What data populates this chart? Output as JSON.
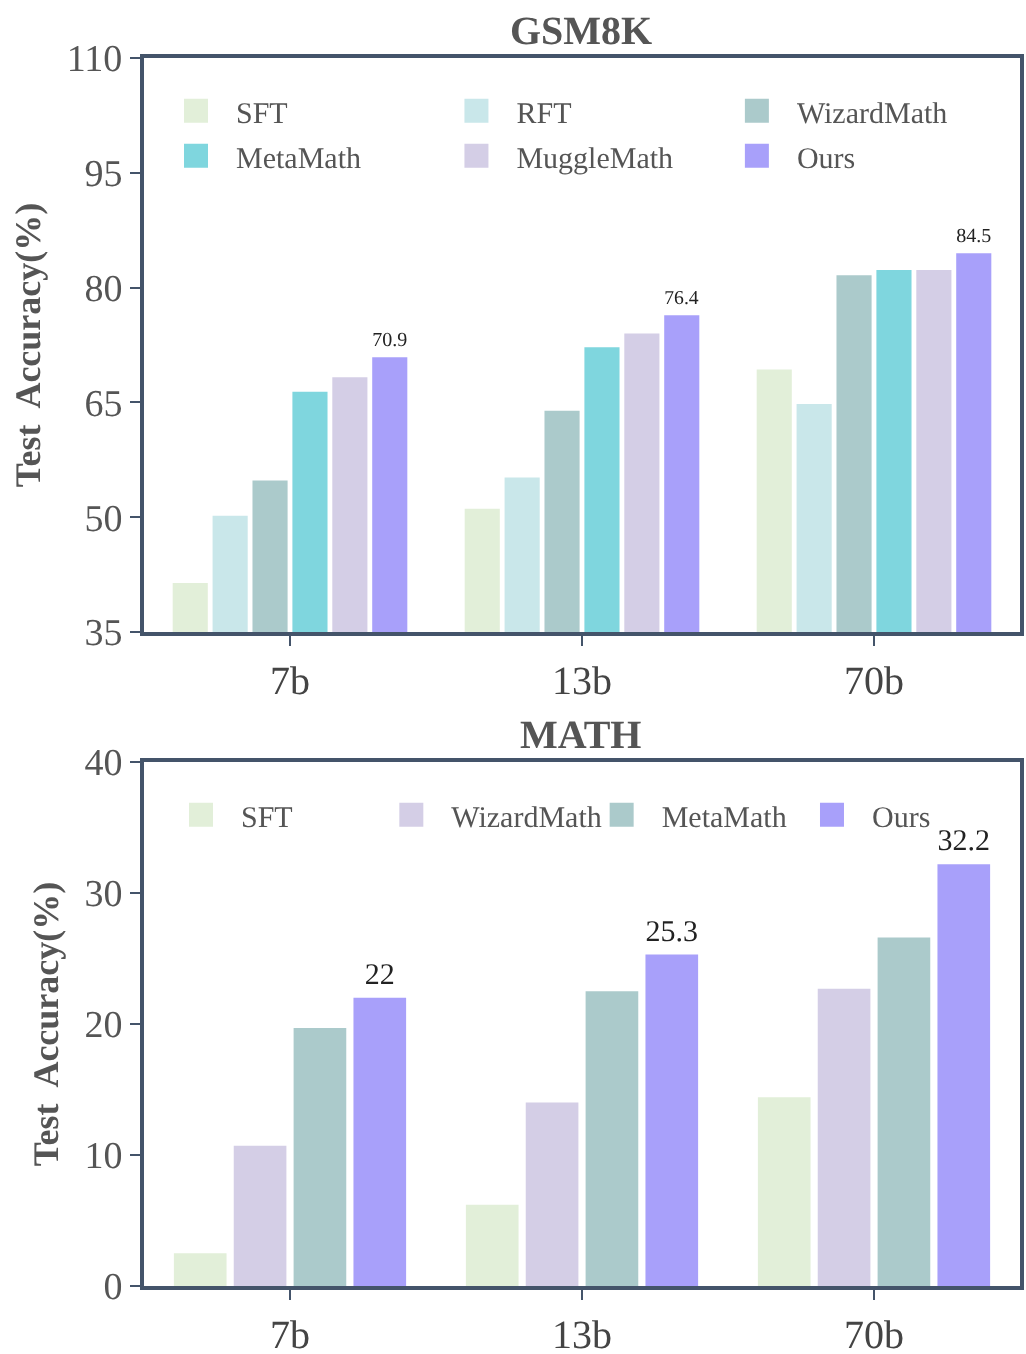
{
  "chart_data": [
    {
      "type": "bar",
      "title": "GSM8K",
      "ylabel": "Test  Accuracy(%)",
      "categories": [
        "7b",
        "13b",
        "70b"
      ],
      "ylim": [
        35,
        110
      ],
      "yticks": [
        35,
        50,
        65,
        80,
        95,
        110
      ],
      "grid": false,
      "legend": "top",
      "series": [
        {
          "name": "SFT",
          "color": "#e2efd9",
          "values": [
            41.4,
            51.1,
            69.3
          ]
        },
        {
          "name": "RFT",
          "color": "#c9e7ea",
          "values": [
            50.2,
            55.2,
            64.8
          ]
        },
        {
          "name": "WizardMath",
          "color": "#abcacb",
          "values": [
            54.8,
            63.9,
            81.6
          ]
        },
        {
          "name": "MetaMath",
          "color": "#7fd6de",
          "values": [
            66.4,
            72.2,
            82.3
          ]
        },
        {
          "name": "MuggleMath",
          "color": "#d4cee6",
          "values": [
            68.3,
            74.0,
            82.3
          ]
        },
        {
          "name": "Ours",
          "color": "#a8a0fa",
          "values": [
            70.9,
            76.4,
            84.5
          ],
          "value_labels": [
            "70.9",
            "76.4",
            "84.5"
          ]
        }
      ]
    },
    {
      "type": "bar",
      "title": "MATH",
      "ylabel": "Test  Accuracy(%)",
      "categories": [
        "7b",
        "13b",
        "70b"
      ],
      "ylim": [
        0,
        40
      ],
      "yticks": [
        0,
        10,
        20,
        30,
        40
      ],
      "grid": false,
      "legend": "top",
      "series": [
        {
          "name": "SFT",
          "color": "#e2efd9",
          "values": [
            2.5,
            6.2,
            14.4
          ]
        },
        {
          "name": "WizardMath",
          "color": "#d4cee6",
          "values": [
            10.7,
            14.0,
            22.7
          ]
        },
        {
          "name": "MetaMath",
          "color": "#abcacb",
          "values": [
            19.7,
            22.5,
            26.6
          ]
        },
        {
          "name": "Ours",
          "color": "#a8a0fa",
          "values": [
            22,
            25.3,
            32.2
          ],
          "value_labels": [
            "22",
            "25.3",
            "32.2"
          ]
        }
      ]
    }
  ]
}
